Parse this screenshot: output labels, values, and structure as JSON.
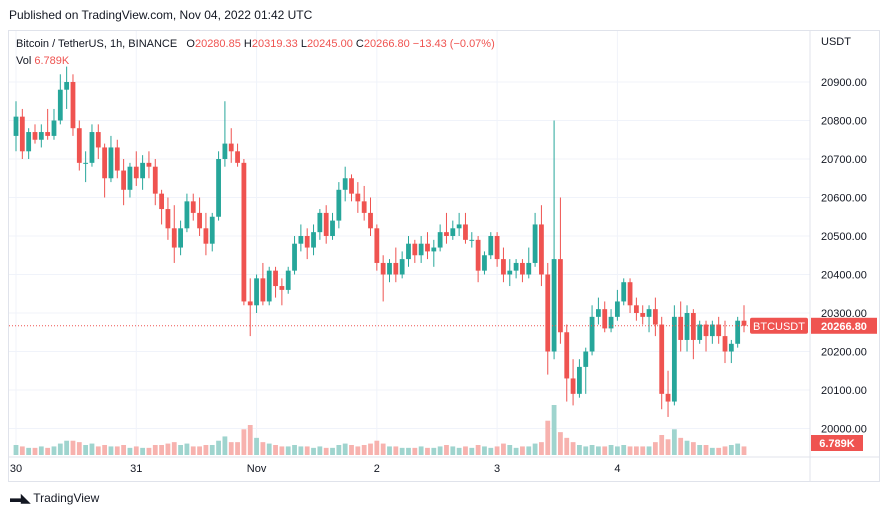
{
  "header": {
    "published": "Published on TradingView.com, Nov 04, 2022 01:42 UTC"
  },
  "legend": {
    "symbol": "Bitcoin / TetherUS, 1h, BINANCE",
    "o_label": "O",
    "o_value": "20280.85",
    "h_label": "H",
    "h_value": "20319.33",
    "l_label": "L",
    "l_value": "20245.00",
    "c_label": "C",
    "c_value": "20266.80",
    "change": "−13.43 (−0.07%)",
    "vol_label": "Vol",
    "vol_value": "6.789K"
  },
  "footer": {
    "brand": "TradingView"
  },
  "colors": {
    "up": "#26a69a",
    "down": "#ef5350",
    "up_vol": "#9fd4ce",
    "down_vol": "#f7b2ae",
    "grid": "#f0f3fa",
    "axis_text": "#131722"
  },
  "chart_data": {
    "type": "candlestick",
    "currency": "USDT",
    "y_ticks": [
      20000,
      20100,
      20200,
      20300,
      20400,
      20500,
      20600,
      20700,
      20800,
      20900
    ],
    "y_tick_labels": [
      "20000.00",
      "20100.00",
      "20200.00",
      "20300.00",
      "20400.00",
      "20500.00",
      "20600.00",
      "20700.00",
      "20800.00",
      "20900.00"
    ],
    "ylim": [
      19945,
      20955
    ],
    "x_labels": [
      {
        "label": "30",
        "index": 0
      },
      {
        "label": "31",
        "index": 19
      },
      {
        "label": "Nov",
        "index": 38
      },
      {
        "label": "2",
        "index": 57
      },
      {
        "label": "3",
        "index": 76
      },
      {
        "label": "4",
        "index": 95
      }
    ],
    "last_price": {
      "symbol": "BTCUSDT",
      "value": 20266.8,
      "label": "20266.80"
    },
    "volume_label": "6.789K",
    "candles": [
      {
        "o": 20760,
        "h": 20850,
        "l": 20720,
        "c": 20810,
        "v": 0.7
      },
      {
        "o": 20810,
        "h": 20830,
        "l": 20700,
        "c": 20720,
        "v": 0.6
      },
      {
        "o": 20720,
        "h": 20780,
        "l": 20700,
        "c": 20770,
        "v": 0.5
      },
      {
        "o": 20770,
        "h": 20790,
        "l": 20740,
        "c": 20750,
        "v": 0.5
      },
      {
        "o": 20750,
        "h": 20790,
        "l": 20730,
        "c": 20770,
        "v": 0.6
      },
      {
        "o": 20770,
        "h": 20830,
        "l": 20750,
        "c": 20760,
        "v": 0.5
      },
      {
        "o": 20760,
        "h": 20830,
        "l": 20750,
        "c": 20800,
        "v": 0.6
      },
      {
        "o": 20800,
        "h": 20920,
        "l": 20790,
        "c": 20880,
        "v": 0.8
      },
      {
        "o": 20880,
        "h": 20940,
        "l": 20830,
        "c": 20900,
        "v": 1.0
      },
      {
        "o": 20900,
        "h": 20920,
        "l": 20760,
        "c": 20780,
        "v": 1.0
      },
      {
        "o": 20780,
        "h": 20800,
        "l": 20670,
        "c": 20690,
        "v": 0.9
      },
      {
        "o": 20690,
        "h": 20720,
        "l": 20640,
        "c": 20690,
        "v": 0.7
      },
      {
        "o": 20690,
        "h": 20790,
        "l": 20680,
        "c": 20770,
        "v": 0.8
      },
      {
        "o": 20770,
        "h": 20790,
        "l": 20700,
        "c": 20730,
        "v": 0.6
      },
      {
        "o": 20730,
        "h": 20740,
        "l": 20600,
        "c": 20650,
        "v": 0.7
      },
      {
        "o": 20650,
        "h": 20760,
        "l": 20640,
        "c": 20730,
        "v": 0.6
      },
      {
        "o": 20730,
        "h": 20750,
        "l": 20650,
        "c": 20670,
        "v": 0.6
      },
      {
        "o": 20670,
        "h": 20700,
        "l": 20580,
        "c": 20620,
        "v": 0.7
      },
      {
        "o": 20620,
        "h": 20690,
        "l": 20600,
        "c": 20680,
        "v": 0.5
      },
      {
        "o": 20680,
        "h": 20720,
        "l": 20630,
        "c": 20650,
        "v": 0.6
      },
      {
        "o": 20650,
        "h": 20710,
        "l": 20620,
        "c": 20690,
        "v": 0.5
      },
      {
        "o": 20690,
        "h": 20720,
        "l": 20650,
        "c": 20680,
        "v": 0.5
      },
      {
        "o": 20680,
        "h": 20700,
        "l": 20580,
        "c": 20610,
        "v": 0.7
      },
      {
        "o": 20610,
        "h": 20620,
        "l": 20530,
        "c": 20570,
        "v": 0.7
      },
      {
        "o": 20570,
        "h": 20600,
        "l": 20490,
        "c": 20520,
        "v": 0.8
      },
      {
        "o": 20520,
        "h": 20580,
        "l": 20430,
        "c": 20470,
        "v": 0.9
      },
      {
        "o": 20470,
        "h": 20540,
        "l": 20450,
        "c": 20520,
        "v": 0.7
      },
      {
        "o": 20520,
        "h": 20610,
        "l": 20510,
        "c": 20590,
        "v": 0.8
      },
      {
        "o": 20590,
        "h": 20610,
        "l": 20540,
        "c": 20560,
        "v": 0.6
      },
      {
        "o": 20560,
        "h": 20600,
        "l": 20500,
        "c": 20520,
        "v": 0.6
      },
      {
        "o": 20520,
        "h": 20560,
        "l": 20450,
        "c": 20480,
        "v": 0.7
      },
      {
        "o": 20480,
        "h": 20560,
        "l": 20460,
        "c": 20550,
        "v": 0.7
      },
      {
        "o": 20550,
        "h": 20720,
        "l": 20540,
        "c": 20700,
        "v": 1.0
      },
      {
        "o": 20700,
        "h": 20850,
        "l": 20680,
        "c": 20740,
        "v": 1.3
      },
      {
        "o": 20740,
        "h": 20780,
        "l": 20690,
        "c": 20720,
        "v": 0.9
      },
      {
        "o": 20720,
        "h": 20740,
        "l": 20680,
        "c": 20690,
        "v": 0.9
      },
      {
        "o": 20690,
        "h": 20700,
        "l": 20320,
        "c": 20330,
        "v": 1.8
      },
      {
        "o": 20330,
        "h": 20390,
        "l": 20240,
        "c": 20320,
        "v": 2.1
      },
      {
        "o": 20320,
        "h": 20400,
        "l": 20300,
        "c": 20390,
        "v": 1.2
      },
      {
        "o": 20390,
        "h": 20430,
        "l": 20320,
        "c": 20330,
        "v": 0.9
      },
      {
        "o": 20330,
        "h": 20420,
        "l": 20320,
        "c": 20410,
        "v": 0.8
      },
      {
        "o": 20410,
        "h": 20420,
        "l": 20340,
        "c": 20370,
        "v": 0.7
      },
      {
        "o": 20370,
        "h": 20390,
        "l": 20320,
        "c": 20360,
        "v": 0.6
      },
      {
        "o": 20360,
        "h": 20420,
        "l": 20350,
        "c": 20410,
        "v": 0.6
      },
      {
        "o": 20410,
        "h": 20500,
        "l": 20400,
        "c": 20480,
        "v": 0.7
      },
      {
        "o": 20480,
        "h": 20530,
        "l": 20460,
        "c": 20500,
        "v": 0.6
      },
      {
        "o": 20500,
        "h": 20520,
        "l": 20440,
        "c": 20470,
        "v": 0.6
      },
      {
        "o": 20470,
        "h": 20530,
        "l": 20450,
        "c": 20510,
        "v": 0.5
      },
      {
        "o": 20510,
        "h": 20570,
        "l": 20490,
        "c": 20560,
        "v": 0.6
      },
      {
        "o": 20560,
        "h": 20580,
        "l": 20480,
        "c": 20500,
        "v": 0.5
      },
      {
        "o": 20500,
        "h": 20560,
        "l": 20490,
        "c": 20540,
        "v": 0.5
      },
      {
        "o": 20540,
        "h": 20640,
        "l": 20520,
        "c": 20620,
        "v": 0.7
      },
      {
        "o": 20620,
        "h": 20680,
        "l": 20590,
        "c": 20650,
        "v": 0.8
      },
      {
        "o": 20650,
        "h": 20660,
        "l": 20590,
        "c": 20610,
        "v": 0.7
      },
      {
        "o": 20610,
        "h": 20640,
        "l": 20560,
        "c": 20590,
        "v": 0.6
      },
      {
        "o": 20590,
        "h": 20630,
        "l": 20540,
        "c": 20560,
        "v": 0.7
      },
      {
        "o": 20560,
        "h": 20600,
        "l": 20500,
        "c": 20520,
        "v": 0.8
      },
      {
        "o": 20520,
        "h": 20530,
        "l": 20410,
        "c": 20430,
        "v": 1.0
      },
      {
        "o": 20430,
        "h": 20450,
        "l": 20330,
        "c": 20400,
        "v": 0.8
      },
      {
        "o": 20400,
        "h": 20440,
        "l": 20380,
        "c": 20430,
        "v": 0.6
      },
      {
        "o": 20430,
        "h": 20470,
        "l": 20380,
        "c": 20400,
        "v": 0.6
      },
      {
        "o": 20400,
        "h": 20460,
        "l": 20390,
        "c": 20440,
        "v": 0.5
      },
      {
        "o": 20440,
        "h": 20500,
        "l": 20420,
        "c": 20480,
        "v": 0.5
      },
      {
        "o": 20480,
        "h": 20490,
        "l": 20430,
        "c": 20450,
        "v": 0.5
      },
      {
        "o": 20450,
        "h": 20500,
        "l": 20430,
        "c": 20480,
        "v": 0.6
      },
      {
        "o": 20480,
        "h": 20510,
        "l": 20440,
        "c": 20460,
        "v": 0.5
      },
      {
        "o": 20460,
        "h": 20490,
        "l": 20420,
        "c": 20470,
        "v": 0.5
      },
      {
        "o": 20470,
        "h": 20530,
        "l": 20460,
        "c": 20510,
        "v": 0.6
      },
      {
        "o": 20510,
        "h": 20560,
        "l": 20480,
        "c": 20500,
        "v": 0.7
      },
      {
        "o": 20500,
        "h": 20540,
        "l": 20490,
        "c": 20520,
        "v": 0.6
      },
      {
        "o": 20520,
        "h": 20560,
        "l": 20500,
        "c": 20530,
        "v": 0.5
      },
      {
        "o": 20530,
        "h": 20560,
        "l": 20480,
        "c": 20490,
        "v": 0.6
      },
      {
        "o": 20490,
        "h": 20510,
        "l": 20470,
        "c": 20490,
        "v": 0.5
      },
      {
        "o": 20490,
        "h": 20500,
        "l": 20380,
        "c": 20410,
        "v": 0.7
      },
      {
        "o": 20410,
        "h": 20460,
        "l": 20400,
        "c": 20450,
        "v": 0.6
      },
      {
        "o": 20450,
        "h": 20510,
        "l": 20440,
        "c": 20500,
        "v": 0.5
      },
      {
        "o": 20500,
        "h": 20510,
        "l": 20420,
        "c": 20440,
        "v": 0.6
      },
      {
        "o": 20440,
        "h": 20470,
        "l": 20380,
        "c": 20400,
        "v": 0.8
      },
      {
        "o": 20400,
        "h": 20440,
        "l": 20370,
        "c": 20410,
        "v": 0.7
      },
      {
        "o": 20410,
        "h": 20440,
        "l": 20390,
        "c": 20430,
        "v": 0.5
      },
      {
        "o": 20430,
        "h": 20440,
        "l": 20380,
        "c": 20400,
        "v": 0.6
      },
      {
        "o": 20400,
        "h": 20470,
        "l": 20390,
        "c": 20430,
        "v": 0.6
      },
      {
        "o": 20430,
        "h": 20560,
        "l": 20420,
        "c": 20530,
        "v": 0.8
      },
      {
        "o": 20530,
        "h": 20580,
        "l": 20370,
        "c": 20400,
        "v": 0.9
      },
      {
        "o": 20400,
        "h": 20430,
        "l": 20140,
        "c": 20200,
        "v": 2.4
      },
      {
        "o": 20200,
        "h": 20800,
        "l": 20180,
        "c": 20440,
        "v": 3.5
      },
      {
        "o": 20440,
        "h": 20600,
        "l": 20220,
        "c": 20250,
        "v": 1.6
      },
      {
        "o": 20250,
        "h": 20270,
        "l": 20070,
        "c": 20130,
        "v": 1.2
      },
      {
        "o": 20130,
        "h": 20180,
        "l": 20060,
        "c": 20090,
        "v": 0.9
      },
      {
        "o": 20090,
        "h": 20180,
        "l": 20080,
        "c": 20160,
        "v": 0.7
      },
      {
        "o": 20160,
        "h": 20210,
        "l": 20090,
        "c": 20200,
        "v": 0.6
      },
      {
        "o": 20200,
        "h": 20320,
        "l": 20190,
        "c": 20290,
        "v": 0.7
      },
      {
        "o": 20290,
        "h": 20340,
        "l": 20270,
        "c": 20310,
        "v": 0.6
      },
      {
        "o": 20310,
        "h": 20330,
        "l": 20250,
        "c": 20260,
        "v": 0.6
      },
      {
        "o": 20260,
        "h": 20310,
        "l": 20250,
        "c": 20290,
        "v": 0.7
      },
      {
        "o": 20290,
        "h": 20360,
        "l": 20280,
        "c": 20330,
        "v": 0.6
      },
      {
        "o": 20330,
        "h": 20390,
        "l": 20320,
        "c": 20380,
        "v": 0.7
      },
      {
        "o": 20380,
        "h": 20390,
        "l": 20300,
        "c": 20320,
        "v": 0.6
      },
      {
        "o": 20320,
        "h": 20340,
        "l": 20280,
        "c": 20300,
        "v": 0.6
      },
      {
        "o": 20300,
        "h": 20320,
        "l": 20270,
        "c": 20290,
        "v": 0.6
      },
      {
        "o": 20290,
        "h": 20320,
        "l": 20250,
        "c": 20310,
        "v": 0.6
      },
      {
        "o": 20310,
        "h": 20340,
        "l": 20240,
        "c": 20270,
        "v": 0.9
      },
      {
        "o": 20270,
        "h": 20290,
        "l": 20050,
        "c": 20090,
        "v": 1.4
      },
      {
        "o": 20090,
        "h": 20150,
        "l": 20030,
        "c": 20070,
        "v": 1.1
      },
      {
        "o": 20070,
        "h": 20320,
        "l": 20060,
        "c": 20290,
        "v": 1.8
      },
      {
        "o": 20290,
        "h": 20330,
        "l": 20200,
        "c": 20230,
        "v": 1.2
      },
      {
        "o": 20230,
        "h": 20320,
        "l": 20200,
        "c": 20300,
        "v": 1.0
      },
      {
        "o": 20300,
        "h": 20310,
        "l": 20180,
        "c": 20230,
        "v": 0.9
      },
      {
        "o": 20230,
        "h": 20280,
        "l": 20220,
        "c": 20270,
        "v": 0.7
      },
      {
        "o": 20270,
        "h": 20280,
        "l": 20200,
        "c": 20240,
        "v": 0.7
      },
      {
        "o": 20240,
        "h": 20280,
        "l": 20220,
        "c": 20270,
        "v": 0.5
      },
      {
        "o": 20270,
        "h": 20290,
        "l": 20220,
        "c": 20240,
        "v": 0.5
      },
      {
        "o": 20240,
        "h": 20280,
        "l": 20170,
        "c": 20200,
        "v": 0.6
      },
      {
        "o": 20200,
        "h": 20230,
        "l": 20170,
        "c": 20220,
        "v": 0.7
      },
      {
        "o": 20220,
        "h": 20290,
        "l": 20210,
        "c": 20280,
        "v": 0.8
      },
      {
        "o": 20280,
        "h": 20320,
        "l": 20250,
        "c": 20267,
        "v": 0.6
      }
    ]
  }
}
